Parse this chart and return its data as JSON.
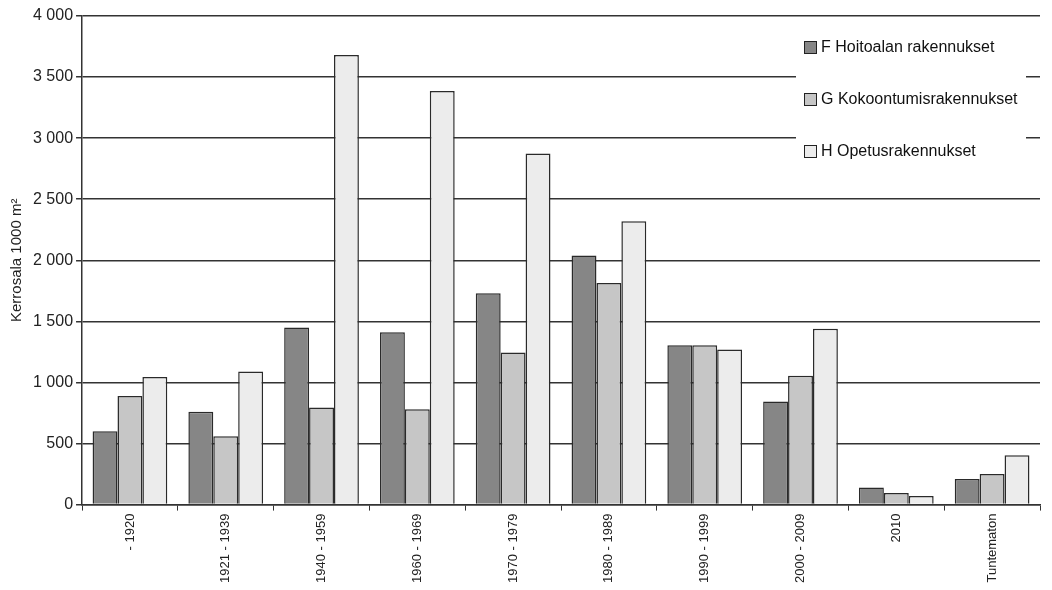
{
  "chart_data": {
    "type": "bar",
    "ylabel": "Kerrosala 1000 m²",
    "categories": [
      "- 1920",
      "1921 - 1939",
      "1940 - 1959",
      "1960 - 1969",
      "1970 - 1979",
      "1980 - 1989",
      "1990 - 1999",
      "2000 - 2009",
      "2010",
      "Tuntematon"
    ],
    "series": [
      {
        "name": "F Hoitoalan rakennukset",
        "color": "#868686",
        "values": [
          600,
          760,
          1450,
          1410,
          1730,
          2040,
          1305,
          845,
          140,
          210
        ]
      },
      {
        "name": "G Kokoontumisrakennukset",
        "color": "#c6c6c6",
        "values": [
          890,
          560,
          795,
          780,
          1245,
          1815,
          1305,
          1055,
          95,
          250
        ]
      },
      {
        "name": "H Opetusrakennukset",
        "color": "#ececec",
        "values": [
          1045,
          1090,
          3680,
          3385,
          2875,
          2320,
          1270,
          1440,
          70,
          405
        ]
      }
    ],
    "ylim": [
      0,
      4000
    ],
    "yticks": [
      0,
      500,
      {
        "value": 1000,
        "label": "1 000"
      },
      {
        "value": 1500,
        "label": "1 500"
      },
      {
        "value": 2000,
        "label": "2 000"
      },
      {
        "value": 2500,
        "label": "2 500"
      },
      {
        "value": 3000,
        "label": "3 000"
      },
      {
        "value": 3500,
        "label": "3 500"
      },
      {
        "value": 4000,
        "label": "4 000"
      }
    ],
    "grid": "y",
    "legend": "top right"
  }
}
